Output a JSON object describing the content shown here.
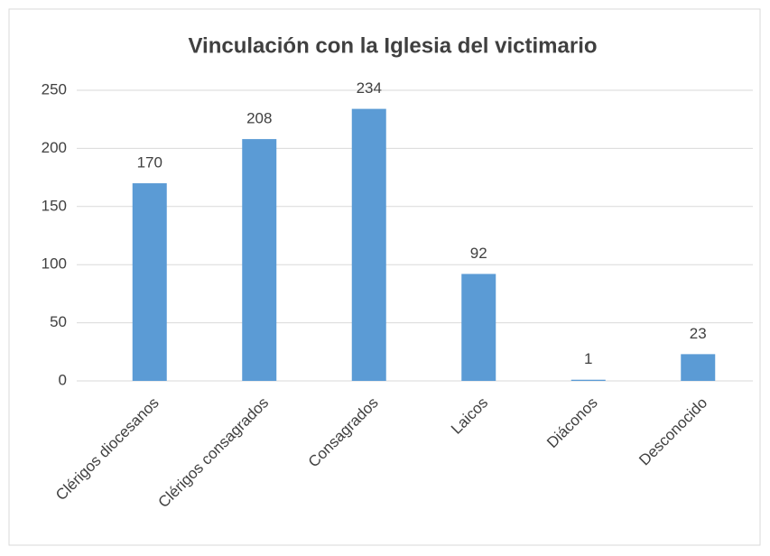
{
  "chart_data": {
    "type": "bar",
    "title": "Vinculación con la Iglesia del victimario",
    "categories": [
      "Clérigos diocesanos",
      "Clérigos consagrados",
      "Consagrados",
      "Laicos",
      "Diáconos",
      "Desconocido"
    ],
    "values": [
      170,
      208,
      234,
      92,
      1,
      23
    ],
    "color": "#5b9bd5",
    "ylim": [
      0,
      250
    ],
    "yticks": [
      0,
      50,
      100,
      150,
      200,
      250
    ],
    "grid": true
  }
}
